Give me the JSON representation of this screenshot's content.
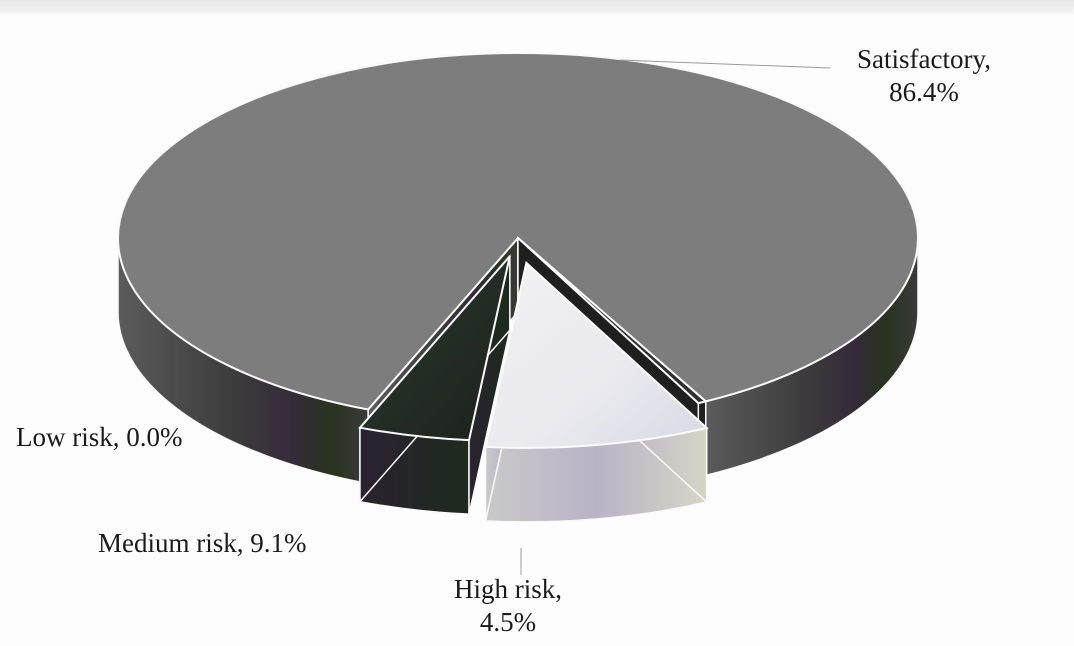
{
  "chart_data": {
    "type": "pie",
    "three_d": true,
    "categories": [
      "Satisfactory",
      "Low risk",
      "Medium risk",
      "High risk"
    ],
    "values": [
      86.4,
      0.0,
      9.1,
      4.5
    ],
    "unit": "%",
    "labels": [
      {
        "category": "Satisfactory",
        "lines": [
          "Satisfactory,",
          "86.4%"
        ]
      },
      {
        "category": "Low risk",
        "lines": [
          "Low risk, 0.0%"
        ]
      },
      {
        "category": "Medium risk",
        "lines": [
          "Medium risk, 9.1%"
        ]
      },
      {
        "category": "High risk",
        "lines": [
          "High risk,",
          "4.5%"
        ]
      }
    ],
    "exploded": [
      "Medium risk",
      "High risk"
    ],
    "colors": {
      "Satisfactory": "#7d7d7d",
      "Low risk": "#2f2f2f",
      "Medium risk": "#eeeeee",
      "High risk": "#262e26"
    },
    "legend": "none"
  }
}
